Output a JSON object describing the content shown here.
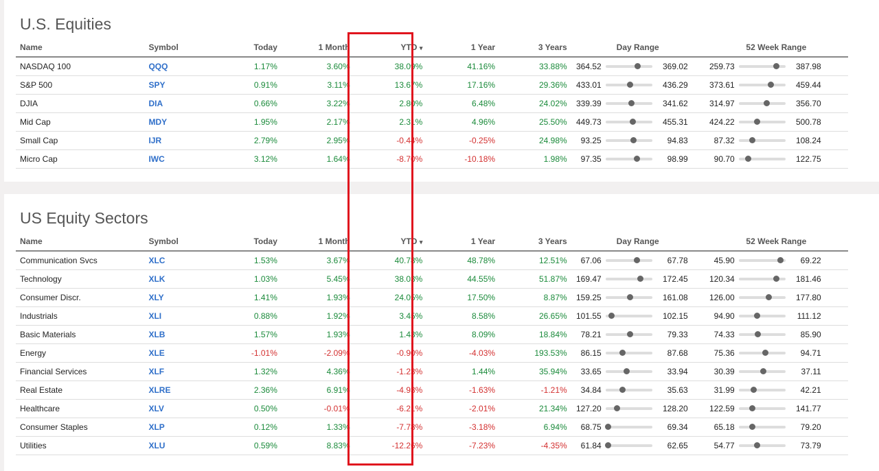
{
  "colors": {
    "positive": "#1a8a3a",
    "negative": "#d32f2f",
    "symbol": "#2f6fc9",
    "highlight": "#e0141e"
  },
  "columns": {
    "name": "Name",
    "symbol": "Symbol",
    "today": "Today",
    "month": "1 Month",
    "ytd": "YTD",
    "sort_icon": "▾",
    "year": "1 Year",
    "three_years": "3 Years",
    "day_range": "Day Range",
    "week52_range": "52 Week Range"
  },
  "equities": {
    "title": "U.S. Equities",
    "rows": [
      {
        "name": "NASDAQ 100",
        "symbol": "QQQ",
        "today": "1.17%",
        "month": "3.60%",
        "ytd": "38.09%",
        "year": "41.16%",
        "three": "33.88%",
        "day_lo": "364.52",
        "day_hi": "369.02",
        "day_pos": 0.68,
        "wk_lo": "259.73",
        "wk_hi": "387.98",
        "wk_pos": 0.8
      },
      {
        "name": "S&P 500",
        "symbol": "SPY",
        "today": "0.91%",
        "month": "3.11%",
        "ytd": "13.67%",
        "year": "17.16%",
        "three": "29.36%",
        "day_lo": "433.01",
        "day_hi": "436.29",
        "day_pos": 0.52,
        "wk_lo": "373.61",
        "wk_hi": "459.44",
        "wk_pos": 0.68
      },
      {
        "name": "DJIA",
        "symbol": "DIA",
        "today": "0.66%",
        "month": "3.22%",
        "ytd": "2.80%",
        "year": "6.48%",
        "three": "24.02%",
        "day_lo": "339.39",
        "day_hi": "341.62",
        "day_pos": 0.55,
        "wk_lo": "314.97",
        "wk_hi": "356.70",
        "wk_pos": 0.59
      },
      {
        "name": "Mid Cap",
        "symbol": "MDY",
        "today": "1.95%",
        "month": "2.17%",
        "ytd": "2.31%",
        "year": "4.96%",
        "three": "25.50%",
        "day_lo": "449.73",
        "day_hi": "455.31",
        "day_pos": 0.58,
        "wk_lo": "424.22",
        "wk_hi": "500.78",
        "wk_pos": 0.38
      },
      {
        "name": "Small Cap",
        "symbol": "IJR",
        "today": "2.79%",
        "month": "2.95%",
        "ytd": "-0.44%",
        "year": "-0.25%",
        "three": "24.98%",
        "day_lo": "93.25",
        "day_hi": "94.83",
        "day_pos": 0.6,
        "wk_lo": "87.32",
        "wk_hi": "108.24",
        "wk_pos": 0.28
      },
      {
        "name": "Micro Cap",
        "symbol": "IWC",
        "today": "3.12%",
        "month": "1.64%",
        "ytd": "-8.70%",
        "year": "-10.18%",
        "three": "1.98%",
        "day_lo": "97.35",
        "day_hi": "98.99",
        "day_pos": 0.66,
        "wk_lo": "90.70",
        "wk_hi": "122.75",
        "wk_pos": 0.2
      }
    ]
  },
  "sectors": {
    "title": "US Equity Sectors",
    "rows": [
      {
        "name": "Communication Svcs",
        "symbol": "XLC",
        "today": "1.53%",
        "month": "3.67%",
        "ytd": "40.78%",
        "year": "48.78%",
        "three": "12.51%",
        "day_lo": "67.06",
        "day_hi": "67.78",
        "day_pos": 0.66,
        "wk_lo": "45.90",
        "wk_hi": "69.22",
        "wk_pos": 0.88
      },
      {
        "name": "Technology",
        "symbol": "XLK",
        "today": "1.03%",
        "month": "5.45%",
        "ytd": "38.03%",
        "year": "44.55%",
        "three": "51.87%",
        "day_lo": "169.47",
        "day_hi": "172.45",
        "day_pos": 0.74,
        "wk_lo": "120.34",
        "wk_hi": "181.46",
        "wk_pos": 0.8
      },
      {
        "name": "Consumer Discr.",
        "symbol": "XLY",
        "today": "1.41%",
        "month": "1.93%",
        "ytd": "24.05%",
        "year": "17.50%",
        "three": "8.87%",
        "day_lo": "159.25",
        "day_hi": "161.08",
        "day_pos": 0.52,
        "wk_lo": "126.00",
        "wk_hi": "177.80",
        "wk_pos": 0.63
      },
      {
        "name": "Industrials",
        "symbol": "XLI",
        "today": "0.88%",
        "month": "1.92%",
        "ytd": "3.45%",
        "year": "8.58%",
        "three": "26.65%",
        "day_lo": "101.55",
        "day_hi": "102.15",
        "day_pos": 0.12,
        "wk_lo": "94.90",
        "wk_hi": "111.12",
        "wk_pos": 0.38
      },
      {
        "name": "Basic Materials",
        "symbol": "XLB",
        "today": "1.57%",
        "month": "1.93%",
        "ytd": "1.43%",
        "year": "8.09%",
        "three": "18.84%",
        "day_lo": "78.21",
        "day_hi": "79.33",
        "day_pos": 0.52,
        "wk_lo": "74.33",
        "wk_hi": "85.90",
        "wk_pos": 0.4
      },
      {
        "name": "Energy",
        "symbol": "XLE",
        "today": "-1.01%",
        "month": "-2.09%",
        "ytd": "-0.90%",
        "year": "-4.03%",
        "three": "193.53%",
        "day_lo": "86.15",
        "day_hi": "87.68",
        "day_pos": 0.36,
        "wk_lo": "75.36",
        "wk_hi": "94.71",
        "wk_pos": 0.56
      },
      {
        "name": "Financial Services",
        "symbol": "XLF",
        "today": "1.32%",
        "month": "4.36%",
        "ytd": "-1.23%",
        "year": "1.44%",
        "three": "35.94%",
        "day_lo": "33.65",
        "day_hi": "33.94",
        "day_pos": 0.45,
        "wk_lo": "30.39",
        "wk_hi": "37.11",
        "wk_pos": 0.52
      },
      {
        "name": "Real Estate",
        "symbol": "XLRE",
        "today": "2.36%",
        "month": "6.91%",
        "ytd": "-4.93%",
        "year": "-1.63%",
        "three": "-1.21%",
        "day_lo": "34.84",
        "day_hi": "35.63",
        "day_pos": 0.36,
        "wk_lo": "31.99",
        "wk_hi": "42.21",
        "wk_pos": 0.32
      },
      {
        "name": "Healthcare",
        "symbol": "XLV",
        "today": "0.50%",
        "month": "-0.01%",
        "ytd": "-6.21%",
        "year": "-2.01%",
        "three": "21.34%",
        "day_lo": "127.20",
        "day_hi": "128.20",
        "day_pos": 0.24,
        "wk_lo": "122.59",
        "wk_hi": "141.77",
        "wk_pos": 0.28
      },
      {
        "name": "Consumer Staples",
        "symbol": "XLP",
        "today": "0.12%",
        "month": "1.33%",
        "ytd": "-7.78%",
        "year": "-3.18%",
        "three": "6.94%",
        "day_lo": "68.75",
        "day_hi": "69.34",
        "day_pos": 0.05,
        "wk_lo": "65.18",
        "wk_hi": "79.20",
        "wk_pos": 0.28
      },
      {
        "name": "Utilities",
        "symbol": "XLU",
        "today": "0.59%",
        "month": "8.83%",
        "ytd": "-12.26%",
        "year": "-7.23%",
        "three": "-4.35%",
        "day_lo": "61.84",
        "day_hi": "62.65",
        "day_pos": 0.05,
        "wk_lo": "54.77",
        "wk_hi": "73.79",
        "wk_pos": 0.38
      }
    ]
  }
}
